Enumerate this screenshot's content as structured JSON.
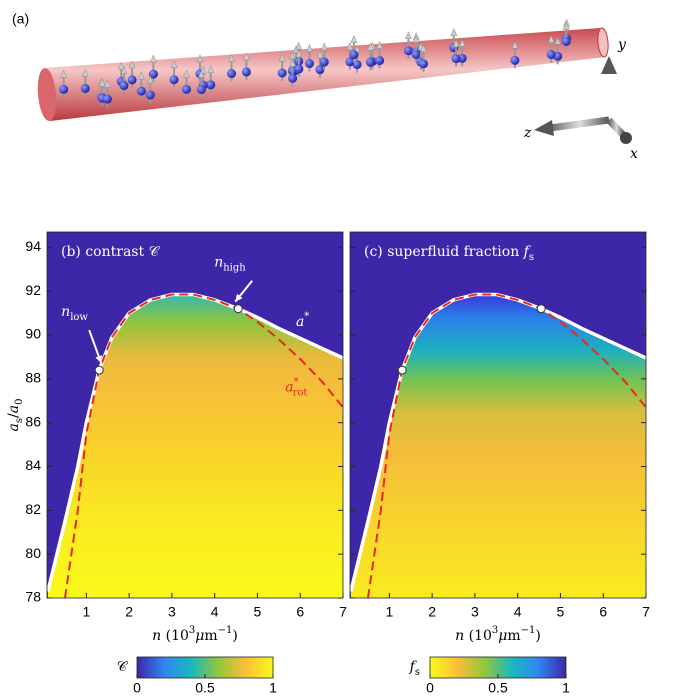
{
  "panel_a": {
    "label": "(a)",
    "axes": [
      "y",
      "z",
      "x"
    ]
  },
  "chart_data": [
    {
      "type": "line",
      "title": [
        {
          "text": "(b) contrast "
        },
        {
          "text": "𝒞"
        }
      ],
      "x": [
        0.1,
        0.5,
        0.8,
        1.0,
        1.3,
        1.6,
        2,
        2.5,
        3,
        3.5,
        4,
        4.55,
        5,
        5.5,
        6,
        6.5,
        7
      ],
      "series": [
        {
          "name": {
            "base": "a",
            "sup": "*"
          },
          "color": "#ffffff",
          "values": [
            78.3,
            81.5,
            84,
            86,
            88.4,
            89.9,
            91.0,
            91.6,
            91.85,
            91.85,
            91.6,
            91.2,
            90.8,
            90.3,
            89.85,
            89.4,
            88.95
          ]
        },
        {
          "name": {
            "base": "a",
            "sup": "*",
            "sub": "rot"
          },
          "color": "#e8281e",
          "values": [
            null,
            78,
            82,
            85.5,
            88.4,
            89.9,
            91.0,
            91.6,
            91.85,
            91.85,
            91.6,
            91.2,
            90.6,
            89.8,
            88.9,
            87.9,
            86.7
          ]
        }
      ],
      "markers": {
        "x": [
          1.3,
          4.55
        ],
        "values": [
          88.4,
          91.2
        ],
        "labels": [
          {
            "base": "n",
            "sub": "low"
          },
          {
            "base": "n",
            "sub": "high"
          }
        ]
      },
      "xlim": [
        0.08,
        7
      ],
      "xticks": [
        1,
        2,
        3,
        4,
        5,
        6,
        7
      ],
      "ylim": [
        78,
        94.7
      ],
      "yticks": [
        78,
        80,
        82,
        84,
        86,
        88,
        90,
        92,
        94
      ],
      "ylabel": [
        {
          "text": "a",
          "style": "italic"
        },
        {
          "text": "s",
          "style": "sub"
        },
        {
          "text": "/"
        },
        {
          "text": "a",
          "style": "italic"
        },
        {
          "text": "0",
          "style": "sub"
        }
      ],
      "xlabel": [
        {
          "text": "n",
          "style": "italic"
        },
        {
          "text": "   (10"
        },
        {
          "text": "3",
          "style": "sup"
        },
        {
          "text": "μ",
          "style": "italic"
        },
        {
          "text": "m"
        },
        {
          "text": "−1",
          "style": "sup"
        },
        {
          "text": ")"
        }
      ],
      "colorbar": {
        "label": "𝒞",
        "lim": [
          0,
          1
        ],
        "ticks": [
          0,
          0.5,
          1
        ],
        "colors": [
          "#3e26a8",
          "#2e87f0",
          "#1ab8bc",
          "#93c63a",
          "#fbbf3a",
          "#f9f91c"
        ]
      }
    },
    {
      "type": "line",
      "title": [
        {
          "text": "(c) superfluid fraction "
        },
        {
          "text": "f",
          "style": "italic"
        },
        {
          "text": "s",
          "style": "sub"
        }
      ],
      "x": [
        0.1,
        0.5,
        0.8,
        1.0,
        1.3,
        1.6,
        2,
        2.5,
        3,
        3.5,
        4,
        4.55,
        5,
        5.5,
        6,
        6.5,
        7
      ],
      "series": [
        {
          "color": "#ffffff",
          "values": [
            78.3,
            81.5,
            84,
            86,
            88.4,
            89.9,
            91.0,
            91.6,
            91.85,
            91.85,
            91.6,
            91.2,
            90.8,
            90.3,
            89.85,
            89.4,
            88.95
          ]
        },
        {
          "color": "#e8281e",
          "values": [
            null,
            78,
            82,
            85.5,
            88.4,
            89.9,
            91.0,
            91.6,
            91.85,
            91.85,
            91.6,
            91.2,
            90.6,
            89.8,
            88.9,
            87.9,
            86.7
          ]
        }
      ],
      "markers": {
        "x": [
          1.3,
          4.55
        ],
        "values": [
          88.4,
          91.2
        ]
      },
      "xlim": [
        0.08,
        7
      ],
      "xticks": [
        1,
        2,
        3,
        4,
        5,
        6,
        7
      ],
      "ylim": [
        78,
        94.7
      ],
      "yticks": [
        78,
        80,
        82,
        84,
        86,
        88,
        90,
        92,
        94
      ],
      "xlabel": [
        {
          "text": "n",
          "style": "italic"
        },
        {
          "text": "   (10"
        },
        {
          "text": "3",
          "style": "sup"
        },
        {
          "text": "μ",
          "style": "italic"
        },
        {
          "text": "m"
        },
        {
          "text": "−1",
          "style": "sup"
        },
        {
          "text": ")"
        }
      ],
      "colorbar": {
        "label": [
          {
            "text": "f",
            "style": "italic"
          },
          {
            "text": "s",
            "style": "sub"
          }
        ],
        "lim": [
          0,
          1
        ],
        "ticks": [
          0,
          0.5,
          1
        ],
        "colors": [
          "#f9f91c",
          "#fbbf3a",
          "#93c63a",
          "#1ab8bc",
          "#2e87f0",
          "#3e26a8"
        ]
      }
    }
  ]
}
